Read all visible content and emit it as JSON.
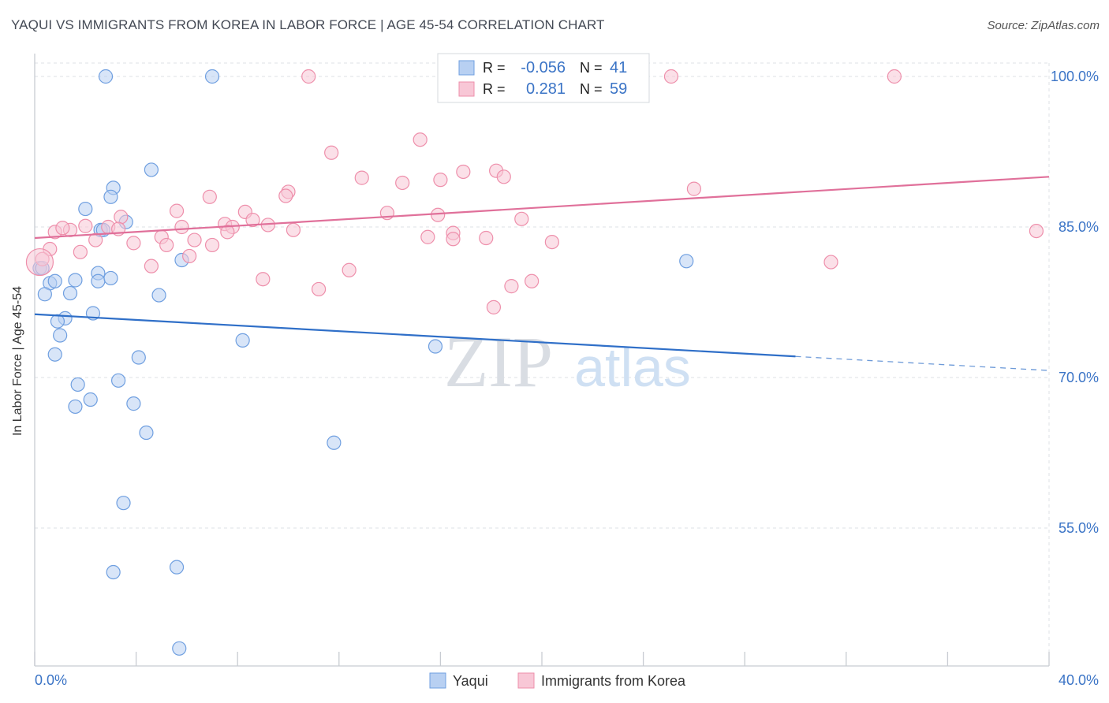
{
  "chart_data": {
    "type": "scatter",
    "title": "YAQUI VS IMMIGRANTS FROM KOREA IN LABOR FORCE | AGE 45-54 CORRELATION CHART",
    "source": "Source: ZipAtlas.com",
    "xlabel": "",
    "ylabel": "In Labor Force | Age 45-54",
    "xlim": [
      0.0,
      40.0
    ],
    "ylim": [
      42.0,
      103.0
    ],
    "x_tick_labels": [
      "0.0%",
      "40.0%"
    ],
    "y_ticks": [
      55.0,
      70.0,
      85.0,
      100.0
    ],
    "y_tick_labels": [
      "55.0%",
      "70.0%",
      "85.0%",
      "100.0%"
    ],
    "grid": true,
    "watermark": {
      "zip": "ZIP",
      "atlas": "atlas"
    },
    "legend_stats": [
      {
        "r_label": "R =",
        "r_value": "-0.056",
        "n_label": "N =",
        "n_value": "41"
      },
      {
        "r_label": "R =",
        "r_value": "0.281",
        "n_label": "N =",
        "n_value": "59"
      }
    ],
    "series": [
      {
        "name": "Yaqui",
        "color": "#6f9fe0",
        "fill": "#b8d0f2",
        "line_color": "#2f6fc8",
        "trend": {
          "x0": 0.0,
          "y0": 76.3,
          "x1": 30.0,
          "y1": 72.1,
          "dash_to_x": 40.0,
          "dash_to_y": 70.7
        },
        "points": [
          [
            2.8,
            100.0
          ],
          [
            7.0,
            100.0
          ],
          [
            4.6,
            90.7
          ],
          [
            3.1,
            88.9
          ],
          [
            3.0,
            88.0
          ],
          [
            2.0,
            86.8
          ],
          [
            3.6,
            85.5
          ],
          [
            2.6,
            84.7
          ],
          [
            2.7,
            84.7
          ],
          [
            5.8,
            81.7
          ],
          [
            0.2,
            80.9
          ],
          [
            2.5,
            80.4
          ],
          [
            1.6,
            79.7
          ],
          [
            2.5,
            79.6
          ],
          [
            3.0,
            79.9
          ],
          [
            0.6,
            79.4
          ],
          [
            0.8,
            79.6
          ],
          [
            1.4,
            78.4
          ],
          [
            0.4,
            78.3
          ],
          [
            4.9,
            78.2
          ],
          [
            2.3,
            76.4
          ],
          [
            1.2,
            75.9
          ],
          [
            0.9,
            75.6
          ],
          [
            1.0,
            74.2
          ],
          [
            8.2,
            73.7
          ],
          [
            15.8,
            73.1
          ],
          [
            0.8,
            72.3
          ],
          [
            4.1,
            72.0
          ],
          [
            1.7,
            69.3
          ],
          [
            3.3,
            69.7
          ],
          [
            2.2,
            67.8
          ],
          [
            1.6,
            67.1
          ],
          [
            3.9,
            67.4
          ],
          [
            4.4,
            64.5
          ],
          [
            11.8,
            63.5
          ],
          [
            3.5,
            57.5
          ],
          [
            3.1,
            50.6
          ],
          [
            5.6,
            51.1
          ],
          [
            5.7,
            43.0
          ],
          [
            25.7,
            81.6
          ],
          [
            0.3,
            80.9
          ]
        ]
      },
      {
        "name": "Immigrants from Korea",
        "color": "#ee8fab",
        "fill": "#f8c7d6",
        "line_color": "#e0709a",
        "trend": {
          "x0": 0.0,
          "y0": 83.9,
          "x1": 40.0,
          "y1": 90.0
        },
        "points": [
          [
            10.8,
            100.0
          ],
          [
            25.1,
            100.0
          ],
          [
            33.9,
            100.0
          ],
          [
            15.2,
            93.7
          ],
          [
            11.7,
            92.4
          ],
          [
            16.9,
            90.5
          ],
          [
            18.2,
            90.6
          ],
          [
            12.9,
            89.9
          ],
          [
            14.5,
            89.4
          ],
          [
            16.0,
            89.7
          ],
          [
            18.5,
            90.0
          ],
          [
            26.0,
            88.8
          ],
          [
            10.0,
            88.5
          ],
          [
            9.9,
            88.1
          ],
          [
            6.9,
            88.0
          ],
          [
            3.4,
            86.0
          ],
          [
            5.6,
            86.6
          ],
          [
            8.3,
            86.5
          ],
          [
            13.9,
            86.4
          ],
          [
            15.9,
            86.2
          ],
          [
            19.2,
            85.8
          ],
          [
            8.6,
            85.7
          ],
          [
            7.5,
            85.3
          ],
          [
            2.0,
            85.1
          ],
          [
            5.8,
            85.0
          ],
          [
            9.2,
            85.2
          ],
          [
            7.8,
            85.0
          ],
          [
            2.9,
            85.0
          ],
          [
            3.3,
            84.8
          ],
          [
            1.4,
            84.7
          ],
          [
            0.8,
            84.5
          ],
          [
            1.1,
            84.9
          ],
          [
            10.2,
            84.7
          ],
          [
            7.6,
            84.5
          ],
          [
            16.5,
            84.4
          ],
          [
            5.0,
            84.0
          ],
          [
            15.5,
            84.0
          ],
          [
            16.5,
            83.8
          ],
          [
            17.8,
            83.9
          ],
          [
            2.4,
            83.7
          ],
          [
            6.3,
            83.7
          ],
          [
            3.9,
            83.4
          ],
          [
            20.4,
            83.5
          ],
          [
            5.2,
            83.2
          ],
          [
            7.0,
            83.2
          ],
          [
            0.6,
            82.8
          ],
          [
            1.8,
            82.5
          ],
          [
            6.1,
            82.1
          ],
          [
            0.3,
            81.8
          ],
          [
            4.6,
            81.1
          ],
          [
            31.4,
            81.5
          ],
          [
            12.4,
            80.7
          ],
          [
            9.0,
            79.8
          ],
          [
            19.6,
            79.6
          ],
          [
            11.2,
            78.8
          ],
          [
            18.8,
            79.1
          ],
          [
            18.1,
            77.0
          ],
          [
            39.5,
            84.6
          ],
          [
            0.2,
            81.5
          ]
        ]
      }
    ]
  }
}
